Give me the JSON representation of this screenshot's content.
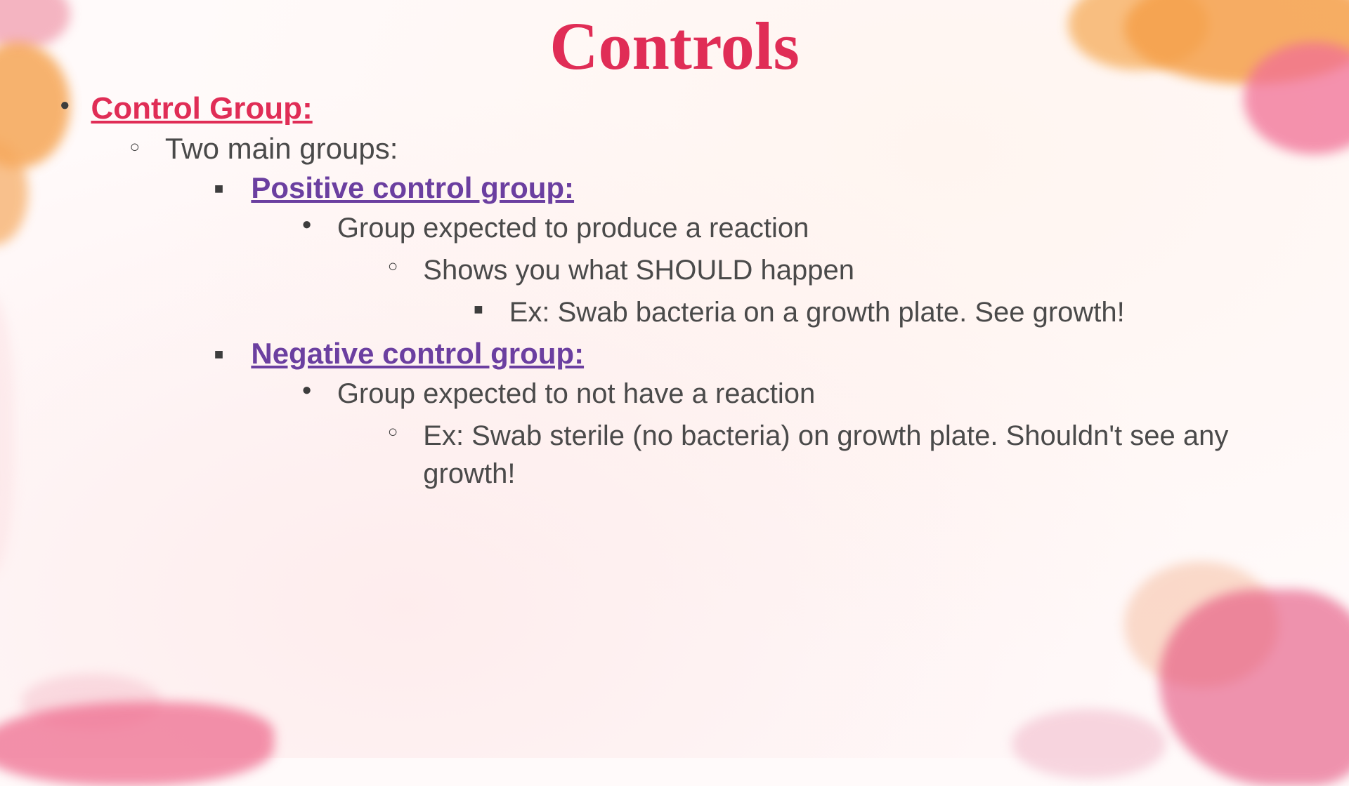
{
  "title": "Controls",
  "colors": {
    "title": "#e02d56",
    "heading_purple": "#6b3fa0",
    "body_text": "#4a4a4a",
    "background": "#fffafa",
    "watercolor_orange": "#f5a04a",
    "watercolor_pink": "#ef6e90",
    "watercolor_magenta": "#e44e7b"
  },
  "typography": {
    "title_font": "Brush Script MT",
    "title_fontsize": 96,
    "body_font": "Trebuchet MS",
    "heading_fontsize": 44,
    "subheading_fontsize": 42,
    "body_fontsize": 40
  },
  "group_heading": "Control Group:",
  "intro_line": "Two main groups:",
  "positive": {
    "heading": "Positive control group:",
    "line1": "Group expected to produce a reaction",
    "line2": "Shows you what SHOULD happen",
    "example": "Ex: Swab bacteria on a growth plate. See growth!"
  },
  "negative": {
    "heading": "Negative control group:",
    "line1": "Group expected to not have a reaction",
    "example": "Ex: Swab sterile (no bacteria) on growth plate. Shouldn't see any growth!"
  }
}
